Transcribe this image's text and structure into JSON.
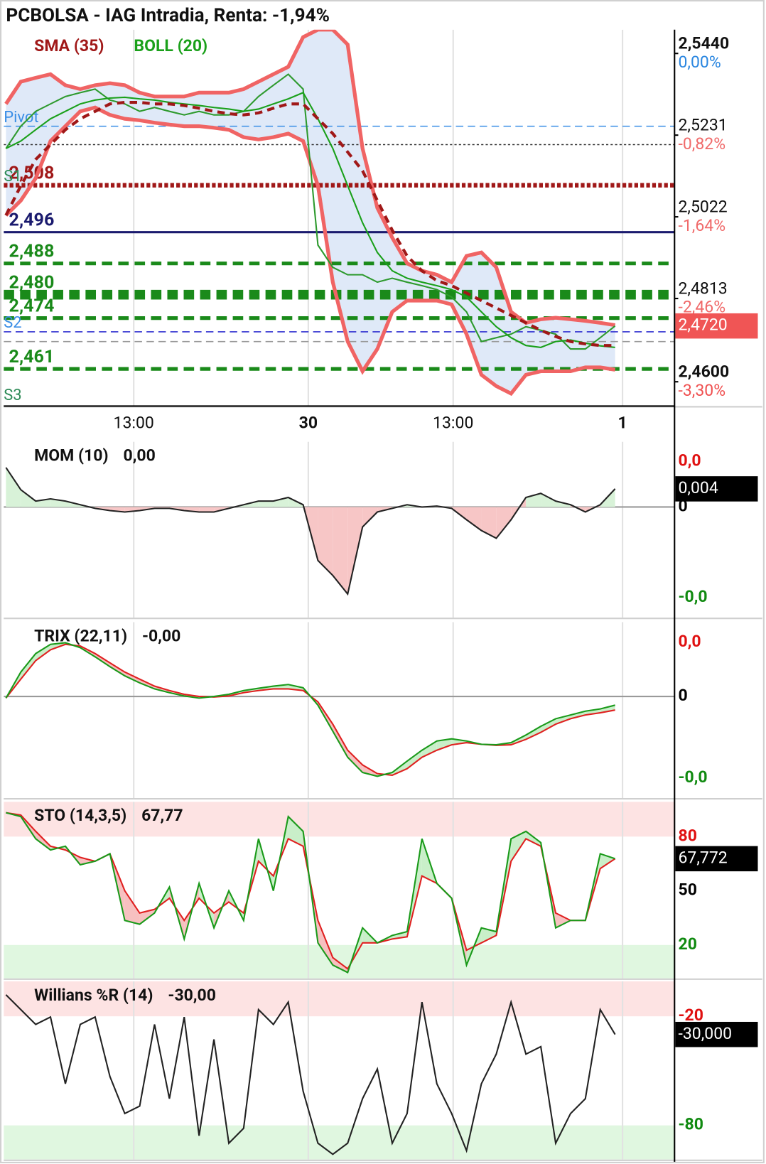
{
  "title": "PCBOLSA - IAG Intradia, Renta: -1,94%",
  "chart_data": [
    {
      "type": "price",
      "legend": "top-left",
      "x": [
        0,
        1,
        2,
        3,
        4,
        5,
        6,
        7,
        8,
        9,
        10,
        11,
        12,
        13,
        14,
        15,
        16,
        17,
        18,
        19,
        20,
        21,
        22,
        23,
        24,
        25,
        26,
        27,
        28,
        29,
        30,
        31,
        32,
        33,
        34,
        35,
        36,
        37,
        38,
        39,
        40,
        41
      ],
      "xlim": [
        0,
        45
      ],
      "xticks": [
        {
          "value": 8.6,
          "label": "13:00"
        },
        {
          "value": 20.35,
          "label": "30"
        },
        {
          "value": 30.1,
          "label": "13:00"
        },
        {
          "value": 41.5,
          "label": "1"
        }
      ],
      "xtick_bold": [
        false,
        true,
        false,
        true
      ],
      "ylim": [
        2.4515,
        2.5478
      ],
      "yticks": [
        {
          "value": 2.544,
          "label": "2,5440"
        },
        {
          "value": 2.5231,
          "label": "2,5231"
        },
        {
          "value": 2.5022,
          "label": "2,5022"
        },
        {
          "value": 2.4813,
          "label": "2,4813"
        },
        {
          "value": 2.46,
          "label": "2,4600"
        }
      ],
      "ytick_bold": [
        true,
        false,
        false,
        false,
        true
      ],
      "ytick_pct": [
        "0,00%",
        "-0,82%",
        "-1,64%",
        "-2,46%",
        "-3,30%"
      ],
      "ytick_pct_colors": [
        "#2a86e0",
        "#f06a6a",
        "#f06a6a",
        "#f06a6a",
        "#f05050"
      ],
      "current": {
        "value": 2.472,
        "label": "2,4720",
        "color": "#f05555"
      },
      "levels": [
        {
          "label": "Pivot",
          "value": 2.5231,
          "color": "#3a8ee6",
          "style": "dashed"
        },
        {
          "value": 2.5184,
          "color": "#333333",
          "style": "dotted"
        },
        {
          "label": "S1",
          "price_label": "2,508",
          "value": 2.508,
          "color": "#a01818",
          "label_color": "#2e8b57",
          "style": "thick-dotted"
        },
        {
          "price_label": "2,496",
          "value": 2.496,
          "color": "#1a1a6e",
          "style": "solid"
        },
        {
          "price_label": "2,488",
          "value": 2.488,
          "color": "#1a8a1a",
          "style": "thick-dashed"
        },
        {
          "price_label": "2,480",
          "value": 2.48,
          "color": "#1a8a1a",
          "style": "heavy-dashed"
        },
        {
          "price_label": "2,474",
          "value": 2.474,
          "color": "#1a8a1a",
          "style": "thick-dashed"
        },
        {
          "label": "S2",
          "value": 2.4705,
          "color": "#3030d0",
          "label_color": "#3a8ee6",
          "style": "dashed"
        },
        {
          "value": 2.468,
          "color": "#999999",
          "style": "dashed"
        },
        {
          "price_label": "2,461",
          "value": 2.461,
          "color": "#1a8a1a",
          "style": "thick-dashed"
        },
        {
          "label": "S3",
          "value": 2.452,
          "color": "#2e8b57",
          "label_color": "#2e8b57",
          "style": "none"
        }
      ],
      "series": [
        {
          "name": "SMA (35)",
          "color": "#a01818",
          "style": "dashed",
          "values": [
            2.5003,
            2.5079,
            2.5146,
            2.5184,
            2.5222,
            2.525,
            2.5269,
            2.5288,
            2.5292,
            2.5292,
            2.5288,
            2.5288,
            2.5284,
            2.5277,
            2.5269,
            2.5263,
            2.526,
            2.5265,
            2.5277,
            2.5288,
            2.5288,
            2.525,
            2.5212,
            2.5165,
            2.5117,
            2.5041,
            2.4965,
            2.4899,
            2.4861,
            2.4836,
            2.4823,
            2.4804,
            2.4785,
            2.4766,
            2.4747,
            2.4728,
            2.4709,
            2.4693,
            2.468,
            2.4674,
            2.467,
            2.467
          ]
        },
        {
          "name": "BOLL (20)",
          "color": "#1aa01a",
          "band_color": "#f06464",
          "fill_color": "#dfe9f8",
          "values": [
            2.5174,
            2.5193,
            2.5222,
            2.525,
            2.5269,
            2.5288,
            2.5298,
            2.5303,
            2.5305,
            2.5301,
            2.5298,
            2.5292,
            2.5288,
            2.5284,
            2.5279,
            2.5275,
            2.5269,
            2.5275,
            2.5288,
            2.5301,
            2.5317,
            2.525,
            2.5174,
            2.5079,
            2.4984,
            2.4908,
            2.4861,
            2.4842,
            2.4832,
            2.4823,
            2.4813,
            2.4794,
            2.4756,
            2.4718,
            2.469,
            2.467,
            2.4665,
            2.468,
            2.4684,
            2.4676,
            2.4669,
            2.4665
          ],
          "upper": [
            2.5288,
            2.5345,
            2.5355,
            2.5364,
            2.5336,
            2.5326,
            2.5336,
            2.5341,
            2.5336,
            2.5317,
            2.5307,
            2.5307,
            2.5307,
            2.5317,
            2.5317,
            2.5317,
            2.5326,
            2.5345,
            2.5364,
            2.5383,
            2.5459,
            2.5478,
            2.5478,
            2.544,
            2.5174,
            2.5022,
            2.4946,
            2.488,
            2.4861,
            2.4851,
            2.4832,
            2.4899,
            2.4908,
            2.487,
            2.4756,
            2.4728,
            2.4737,
            2.4741,
            2.4737,
            2.4733,
            2.4728,
            2.4722
          ],
          "lower": [
            2.5003,
            2.5041,
            2.5098,
            2.5193,
            2.5231,
            2.5269,
            2.5279,
            2.526,
            2.525,
            2.5246,
            2.524,
            2.5235,
            2.5231,
            2.5231,
            2.5227,
            2.5222,
            2.5203,
            2.5197,
            2.5203,
            2.5212,
            2.5193,
            2.5079,
            2.4832,
            2.468,
            2.4604,
            2.4661,
            2.4756,
            2.4785,
            2.4785,
            2.4785,
            2.4775,
            2.4699,
            2.4595,
            2.4566,
            2.4547,
            2.4595,
            2.4604,
            2.4604,
            2.4604,
            2.4614,
            2.4614,
            2.4608
          ]
        },
        {
          "color": "#2e9a2e",
          "values": [
            2.5174,
            2.5231,
            2.5269,
            2.5288,
            2.5307,
            2.5317,
            2.5326,
            2.5298,
            2.5288,
            2.5269,
            2.5279,
            2.5269,
            2.526,
            2.5269,
            2.526,
            2.526,
            2.5269,
            2.5307,
            2.5336,
            2.5364,
            2.5326,
            2.4927,
            2.487,
            2.4851,
            2.4851,
            2.4832,
            2.4842,
            2.4832,
            2.4823,
            2.4813,
            2.4794,
            2.4756,
            2.468,
            2.469,
            2.4699,
            2.4718,
            2.4709,
            2.4699,
            2.4661,
            2.4661,
            2.469,
            2.472
          ]
        }
      ]
    },
    {
      "type": "momentum",
      "title": "MOM (10)",
      "title_value": "0,00",
      "ylim": [
        -0.0244,
        0.0144
      ],
      "yticks": [
        {
          "value": 0.01,
          "label": "0,0"
        },
        0,
        {
          "value": -0.02,
          "label": "-0,0"
        }
      ],
      "ytick_colors": [
        "#e01010",
        "#000000",
        "#108a10"
      ],
      "zero_line": true,
      "up_color": "#d8f2d8",
      "down_color": "#f7c6c6",
      "current": {
        "value": 0.004,
        "label": "0,004",
        "color": "#000000"
      },
      "series": [
        {
          "color": "#222222",
          "values": [
            0.0087,
            0.0038,
            0.0013,
            0.0018,
            0.0013,
            0.0005,
            -0.0003,
            -0.0008,
            -0.0011,
            -0.0008,
            -0.0003,
            -0.0003,
            -0.0008,
            -0.0011,
            -0.0011,
            -0.0003,
            0.0005,
            0.0013,
            0.0013,
            0.0021,
            0.0005,
            -0.0118,
            -0.0151,
            -0.0192,
            -0.0044,
            -0.0011,
            -0.0003,
            0.0005,
            0,
            0.0002,
            -0.0003,
            -0.0028,
            -0.0052,
            -0.0069,
            -0.0028,
            0.0021,
            0.003,
            0.0013,
            0.0005,
            -0.0011,
            0.0005,
            0.004
          ]
        }
      ]
    },
    {
      "type": "cross",
      "title": "TRIX (22,11)",
      "title_value": "-0,00",
      "ylim": [
        -0.00187,
        0.00137
      ],
      "yticks": [
        {
          "value": 0.001,
          "label": "0,0"
        },
        0,
        {
          "value": -0.0015,
          "label": "-0,0"
        }
      ],
      "ytick_colors": [
        "#e01010",
        "#000000",
        "#108a10"
      ],
      "zero_line": true,
      "up_color": "#c9efc9",
      "down_color": "#f7c0c0",
      "series": [
        {
          "color": "#1a9a1a",
          "values": [
            -3e-05,
            0.00045,
            0.00079,
            0.00096,
            0.00099,
            0.0009,
            0.00073,
            0.00055,
            0.00038,
            0.00025,
            0.00014,
            7e-05,
            1e-05,
            -3e-05,
            0,
            4e-05,
            0.00011,
            0.00015,
            0.00019,
            0.00022,
            0.00016,
            -0.00016,
            -0.00064,
            -0.00112,
            -0.0014,
            -0.00147,
            -0.0014,
            -0.00119,
            -0.00099,
            -0.00082,
            -0.00078,
            -0.00082,
            -0.00088,
            -0.00089,
            -0.00085,
            -0.00071,
            -0.00055,
            -0.00041,
            -0.00034,
            -0.00027,
            -0.00023,
            -0.00016
          ]
        },
        {
          "color": "#e02020",
          "values": [
            -3e-05,
            0.00032,
            0.00066,
            0.00086,
            0.00096,
            0.00093,
            0.00079,
            0.00062,
            0.00045,
            0.00032,
            0.00019,
            0.00011,
            4e-05,
            0,
            -1e-05,
            1e-05,
            7e-05,
            0.00011,
            0.00014,
            0.00014,
            0.00011,
            -0.0001,
            -0.00051,
            -0.00099,
            -0.00126,
            -0.00142,
            -0.00145,
            -0.00133,
            -0.00112,
            -0.00099,
            -0.00089,
            -0.00085,
            -0.00088,
            -0.0009,
            -0.00089,
            -0.00079,
            -0.00066,
            -0.00051,
            -0.00041,
            -0.00034,
            -0.0003,
            -0.00025
          ]
        }
      ]
    },
    {
      "type": "cross",
      "title": "STO (14,3,5)",
      "title_value": "67,77",
      "ylim": [
        1.5,
        99.3
      ],
      "yticks": [
        80,
        50,
        20
      ],
      "ytick_colors": [
        "#e01010",
        "#000000",
        "#108a10"
      ],
      "bands": {
        "above": 80,
        "below": 20,
        "above_color": "#fde3e3",
        "below_color": "#e0f7e0"
      },
      "up_color": "#c9efc9",
      "down_color": "#f7c0c0",
      "current": {
        "value": 67.772,
        "label": "67,772",
        "color": "#000000"
      },
      "series": [
        {
          "color": "#1a9a1a",
          "values": [
            93.2,
            91.1,
            78.8,
            72.6,
            74.7,
            64.4,
            66.4,
            70.5,
            33.6,
            31.5,
            37.7,
            52.1,
            23.3,
            54.1,
            29.5,
            50.0,
            33.6,
            78.8,
            50.0,
            91.1,
            82.9,
            21.2,
            8.9,
            4.8,
            29.5,
            21.2,
            25.3,
            27.4,
            78.8,
            54.1,
            45.9,
            8.9,
            29.5,
            27.4,
            78.8,
            82.9,
            76.7,
            29.5,
            33.6,
            33.6,
            70.5,
            67.77
          ]
        },
        {
          "color": "#e02020",
          "values": [
            93.2,
            91.9,
            82.9,
            74.7,
            72.6,
            68.5,
            66.4,
            70.5,
            50.0,
            37.7,
            39.7,
            45.9,
            33.6,
            45.9,
            37.7,
            43.8,
            37.7,
            66.4,
            58.2,
            78.8,
            74.7,
            33.6,
            13.0,
            6.8,
            21.2,
            21.2,
            23.3,
            24.5,
            58.2,
            54.1,
            45.9,
            17.1,
            21.2,
            25.3,
            66.4,
            78.8,
            74.7,
            37.7,
            33.6,
            33.6,
            62.3,
            67.77
          ]
        }
      ]
    },
    {
      "type": "line",
      "title": "Willians %R (14)",
      "title_value": "-30,00",
      "ylim": [
        -98.8,
        -0.8
      ],
      "yticks": [
        -20,
        -80
      ],
      "ytick_colors": [
        "#e01010",
        "#108a10"
      ],
      "bands": {
        "above": -20,
        "below": -80,
        "above_color": "#fde3e3",
        "below_color": "#e0f7e0"
      },
      "current": {
        "value": -30,
        "label": "-30,000",
        "color": "#000000"
      },
      "series": [
        {
          "color": "#222222",
          "values": [
            -8.2,
            -16.3,
            -24.5,
            -20.4,
            -57.1,
            -24.5,
            -20.4,
            -53.1,
            -73.5,
            -69.4,
            -24.5,
            -65.3,
            -20.4,
            -85.7,
            -32.7,
            -89.8,
            -81.6,
            -16.3,
            -24.5,
            -12.2,
            -61.2,
            -89.8,
            -95.9,
            -89.8,
            -65.3,
            -49.0,
            -89.8,
            -73.5,
            -12.2,
            -57.1,
            -73.5,
            -93.9,
            -57.1,
            -40.8,
            -12.2,
            -40.8,
            -36.7,
            -89.8,
            -73.5,
            -65.3,
            -16.3,
            -30.0
          ]
        }
      ]
    }
  ]
}
